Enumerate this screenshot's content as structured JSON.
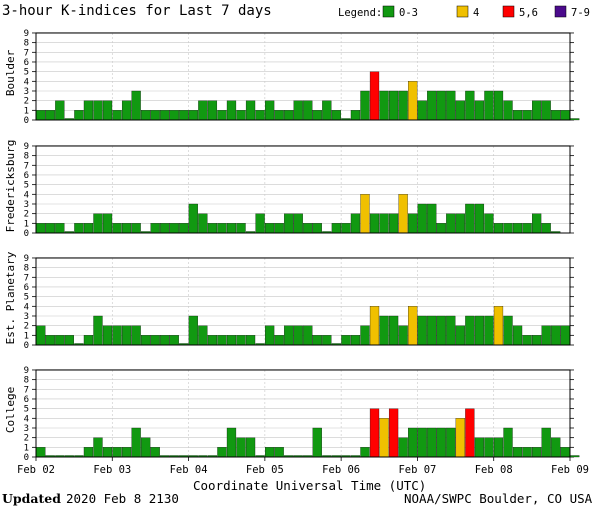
{
  "chart_data": {
    "type": "bar",
    "title": "3-hour K-indices for Last 7 days",
    "legend": {
      "title": "Legend:",
      "items": [
        {
          "label": "0-3",
          "color": "#119911"
        },
        {
          "label": "4",
          "color": "#f0c000"
        },
        {
          "label": "5,6",
          "color": "#ff0000"
        },
        {
          "label": "7-9",
          "color": "#4b0a8c"
        }
      ]
    },
    "ylim": [
      0,
      9
    ],
    "yticks": [
      0,
      1,
      2,
      3,
      4,
      5,
      6,
      7,
      8,
      9
    ],
    "xlabel": "Coordinate Universal Time (UTC)",
    "xtick_labels": [
      "Feb 02",
      "Feb 03",
      "Feb 04",
      "Feb 05",
      "Feb 06",
      "Feb 07",
      "Feb 08",
      "Feb 09"
    ],
    "bars_per_day": 8,
    "series": [
      {
        "name": "Boulder",
        "values": [
          1,
          1,
          2,
          0,
          1,
          2,
          2,
          2,
          1,
          2,
          3,
          1,
          1,
          1,
          1,
          1,
          1,
          2,
          2,
          1,
          2,
          1,
          2,
          1,
          2,
          1,
          1,
          2,
          2,
          1,
          2,
          1,
          0,
          1,
          3,
          5,
          3,
          3,
          3,
          4,
          2,
          3,
          3,
          3,
          2,
          3,
          2,
          3,
          3,
          2,
          1,
          1,
          2,
          2,
          1,
          1,
          0
        ]
      },
      {
        "name": "Fredericksburg",
        "values": [
          1,
          1,
          1,
          0,
          1,
          1,
          2,
          2,
          1,
          1,
          1,
          0,
          1,
          1,
          1,
          1,
          3,
          2,
          1,
          1,
          1,
          1,
          0,
          2,
          1,
          1,
          2,
          2,
          1,
          1,
          0,
          1,
          1,
          2,
          4,
          2,
          2,
          2,
          4,
          2,
          3,
          3,
          1,
          2,
          2,
          3,
          3,
          2,
          1,
          1,
          1,
          1,
          2,
          1,
          0
        ]
      },
      {
        "name": "Est. Planetary",
        "values": [
          2,
          1,
          1,
          1,
          0,
          1,
          3,
          2,
          2,
          2,
          2,
          1,
          1,
          1,
          1,
          0,
          3,
          2,
          1,
          1,
          1,
          1,
          1,
          0,
          2,
          1,
          2,
          2,
          2,
          1,
          1,
          0,
          1,
          1,
          2,
          4,
          3,
          3,
          2,
          4,
          3,
          3,
          3,
          3,
          2,
          3,
          3,
          3,
          4,
          3,
          2,
          1,
          1,
          2,
          2,
          2
        ]
      },
      {
        "name": "College",
        "values": [
          1,
          0,
          0,
          0,
          0,
          1,
          2,
          1,
          1,
          1,
          3,
          2,
          1,
          0,
          0,
          0,
          0,
          0,
          0,
          1,
          3,
          2,
          2,
          0,
          1,
          1,
          0,
          0,
          0,
          3,
          0,
          0,
          0,
          0,
          1,
          5,
          4,
          5,
          2,
          3,
          3,
          3,
          3,
          3,
          4,
          5,
          2,
          2,
          2,
          3,
          1,
          1,
          1,
          3,
          2,
          1,
          0
        ]
      }
    ]
  },
  "footer": {
    "updated_label": "Updated",
    "updated_value": "2020 Feb  8 2130",
    "source": "NOAA/SWPC Boulder, CO USA"
  }
}
